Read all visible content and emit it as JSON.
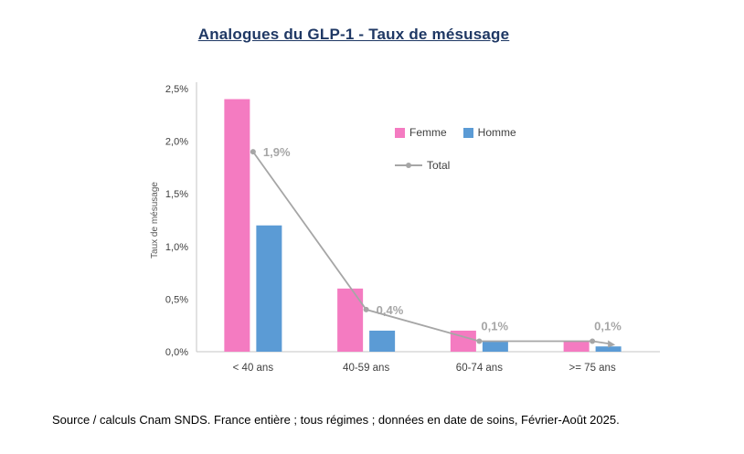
{
  "title": "Analogues du GLP-1 - Taux de mésusage",
  "source": "Source / calculs Cnam SNDS. France entière ; tous régimes ; données en date de soins, Février-Août 2025.",
  "chart_data": {
    "type": "bar",
    "categories": [
      "< 40 ans",
      "40-59 ans",
      "60-74 ans",
      ">= 75 ans"
    ],
    "series": [
      {
        "name": "Femme",
        "type": "bar",
        "color": "#F47BC1",
        "values": [
          2.4,
          0.6,
          0.2,
          0.1
        ]
      },
      {
        "name": "Homme",
        "type": "bar",
        "color": "#5B9BD5",
        "values": [
          1.2,
          0.2,
          0.1,
          0.05
        ]
      },
      {
        "name": "Total",
        "type": "line",
        "color": "#A6A6A6",
        "values": [
          1.9,
          0.4,
          0.1,
          0.1
        ],
        "labels": [
          "1,9%",
          "0,4%",
          "0,1%",
          "0,1%"
        ]
      }
    ],
    "ylabel": "Taux de mésusage",
    "xlabel": "",
    "ylim": [
      0,
      2.5
    ],
    "yticks": [
      "0,0%",
      "0,5%",
      "1,0%",
      "1,5%",
      "2,0%",
      "2,5%"
    ],
    "grid": false,
    "legend_position": "inside-top-right"
  }
}
